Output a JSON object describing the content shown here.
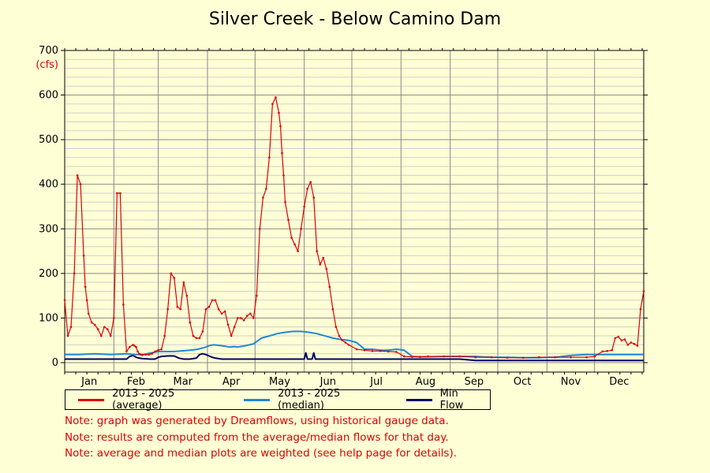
{
  "title": "Silver Creek - Below Camino Dam",
  "chart_data": {
    "type": "line",
    "title": "Silver Creek - Below Camino Dam",
    "yunit": "(cfs)",
    "ylim": [
      0,
      700
    ],
    "yticks": [
      0,
      100,
      200,
      300,
      400,
      500,
      600,
      700
    ],
    "xlim": [
      1,
      366
    ],
    "months": [
      "Jan",
      "Feb",
      "Mar",
      "Apr",
      "May",
      "Jun",
      "Jul",
      "Aug",
      "Sep",
      "Oct",
      "Nov",
      "Dec"
    ],
    "grid": true,
    "legend_position": "bottom-left",
    "series": [
      {
        "name": "2013 - 2025 (average)",
        "color": "#e00000",
        "markers": true,
        "x": [
          1,
          3,
          5,
          7,
          9,
          11,
          13,
          14,
          15,
          16,
          18,
          20,
          22,
          24,
          26,
          28,
          30,
          32,
          34,
          36,
          38,
          40,
          42,
          44,
          45,
          46,
          47,
          48,
          49,
          50,
          52,
          54,
          56,
          58,
          60,
          62,
          64,
          66,
          68,
          70,
          72,
          74,
          76,
          78,
          80,
          82,
          84,
          86,
          88,
          90,
          92,
          94,
          96,
          98,
          100,
          102,
          104,
          106,
          108,
          110,
          112,
          114,
          116,
          118,
          120,
          122,
          124,
          126,
          128,
          130,
          132,
          134,
          136,
          137,
          138,
          139,
          140,
          142,
          144,
          146,
          148,
          150,
          152,
          154,
          156,
          158,
          160,
          162,
          164,
          166,
          168,
          170,
          172,
          174,
          176,
          178,
          180,
          185,
          190,
          195,
          200,
          205,
          210,
          215,
          220,
          225,
          230,
          240,
          250,
          260,
          270,
          280,
          290,
          300,
          310,
          320,
          330,
          335,
          340,
          343,
          346,
          348,
          350,
          352,
          354,
          356,
          358,
          360,
          362,
          364,
          366
        ],
        "y": [
          140,
          60,
          80,
          200,
          420,
          400,
          240,
          170,
          140,
          110,
          90,
          85,
          75,
          60,
          80,
          75,
          60,
          100,
          380,
          380,
          130,
          25,
          35,
          40,
          38,
          35,
          25,
          20,
          18,
          17,
          18,
          18,
          20,
          25,
          28,
          30,
          60,
          120,
          200,
          190,
          125,
          120,
          180,
          150,
          90,
          60,
          55,
          55,
          70,
          120,
          125,
          140,
          140,
          120,
          110,
          115,
          85,
          60,
          80,
          100,
          100,
          95,
          105,
          110,
          100,
          150,
          300,
          370,
          390,
          460,
          580,
          595,
          560,
          530,
          470,
          420,
          360,
          320,
          280,
          265,
          250,
          300,
          350,
          390,
          405,
          370,
          250,
          220,
          235,
          210,
          170,
          120,
          80,
          60,
          50,
          45,
          40,
          30,
          28,
          26,
          26,
          25,
          24,
          14,
          13,
          13,
          14,
          14,
          14,
          12,
          12,
          11,
          11,
          12,
          12,
          12,
          12,
          14,
          25,
          26,
          28,
          55,
          58,
          50,
          52,
          40,
          45,
          42,
          38,
          120,
          160
        ]
      },
      {
        "name": "2013 - 2025 (median)",
        "color": "#1e88d8",
        "markers": false,
        "x": [
          1,
          10,
          20,
          30,
          40,
          45,
          50,
          60,
          70,
          80,
          85,
          90,
          92,
          95,
          100,
          105,
          108,
          110,
          115,
          120,
          125,
          130,
          135,
          140,
          145,
          150,
          155,
          160,
          165,
          170,
          175,
          180,
          185,
          190,
          195,
          200,
          205,
          210,
          215,
          220,
          225,
          230,
          240,
          250,
          260,
          270,
          280,
          290,
          300,
          305,
          310,
          320,
          330,
          340,
          350,
          360,
          366
        ],
        "y": [
          18,
          18,
          20,
          18,
          20,
          18,
          18,
          25,
          25,
          28,
          30,
          35,
          38,
          40,
          38,
          35,
          36,
          35,
          38,
          42,
          55,
          60,
          65,
          68,
          70,
          70,
          68,
          65,
          60,
          55,
          52,
          50,
          45,
          30,
          30,
          28,
          28,
          30,
          28,
          14,
          13,
          13,
          14,
          14,
          14,
          12,
          12,
          11,
          11,
          12,
          12,
          16,
          18,
          18,
          18,
          18,
          18
        ]
      },
      {
        "name": "Min Flow",
        "color": "#000066",
        "markers": false,
        "x": [
          1,
          40,
          42,
          44,
          46,
          48,
          50,
          55,
          58,
          60,
          62,
          66,
          70,
          73,
          76,
          80,
          84,
          86,
          88,
          90,
          92,
          94,
          96,
          98,
          100,
          102,
          104,
          106,
          110,
          120,
          130,
          140,
          145,
          150,
          152,
          153,
          154,
          155,
          156,
          157,
          158,
          159,
          160,
          170,
          180,
          190,
          200,
          210,
          220,
          230,
          240,
          250,
          260,
          270,
          280,
          290,
          300,
          310,
          320,
          330,
          340,
          350,
          360,
          366
        ],
        "y": [
          8,
          8,
          14,
          16,
          12,
          10,
          9,
          8,
          8,
          12,
          14,
          15,
          15,
          10,
          8,
          8,
          10,
          18,
          20,
          18,
          15,
          12,
          10,
          9,
          8,
          8,
          8,
          8,
          8,
          8,
          8,
          8,
          8,
          8,
          8,
          22,
          8,
          8,
          8,
          8,
          22,
          8,
          8,
          8,
          8,
          8,
          8,
          8,
          8,
          8,
          8,
          8,
          5,
          5,
          5,
          5,
          5,
          5,
          5,
          5,
          5,
          5,
          5,
          5
        ]
      }
    ]
  },
  "legend": [
    {
      "label": "2013 - 2025 (average)",
      "color": "#e00000"
    },
    {
      "label": "2013 - 2025 (median)",
      "color": "#1e88d8"
    },
    {
      "label": "Min Flow",
      "color": "#000066"
    }
  ],
  "notes": [
    "Note: graph was generated by Dreamflows, using historical gauge data.",
    "Note: results are computed from the average/median flows for that day.",
    "Note: average and median plots are weighted (see help page for details)."
  ]
}
